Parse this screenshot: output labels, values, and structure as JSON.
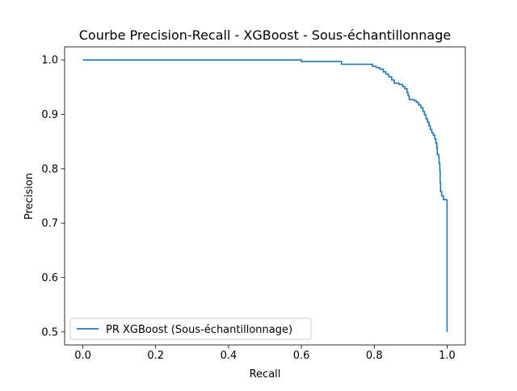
{
  "chart_data": {
    "type": "line",
    "title": "Courbe Precision-Recall - XGBoost - Sous-échantillonnage",
    "xlabel": "Recall",
    "ylabel": "Precision",
    "xlim": [
      -0.05,
      1.05
    ],
    "ylim": [
      0.476,
      1.024
    ],
    "x_ticks": [
      0.0,
      0.2,
      0.4,
      0.6,
      0.8,
      1.0
    ],
    "x_tick_labels": [
      "0.0",
      "0.2",
      "0.4",
      "0.6",
      "0.8",
      "1.0"
    ],
    "y_ticks": [
      0.5,
      0.6,
      0.7,
      0.8,
      0.9,
      1.0
    ],
    "y_tick_labels": [
      "0.5",
      "0.6",
      "0.7",
      "0.8",
      "0.9",
      "1.0"
    ],
    "grid": false,
    "legend": {
      "position": "lower-left",
      "entries": [
        "PR XGBoost (Sous-échantillonnage)"
      ]
    },
    "series": [
      {
        "name": "PR XGBoost (Sous-échantillonnage)",
        "color": "#1f77b4",
        "step": true,
        "points": [
          [
            0.0,
            1.0
          ],
          [
            0.6,
            1.0
          ],
          [
            0.6,
            0.997
          ],
          [
            0.71,
            0.997
          ],
          [
            0.71,
            0.992
          ],
          [
            0.795,
            0.992
          ],
          [
            0.795,
            0.988
          ],
          [
            0.805,
            0.988
          ],
          [
            0.805,
            0.986
          ],
          [
            0.815,
            0.986
          ],
          [
            0.815,
            0.983
          ],
          [
            0.825,
            0.983
          ],
          [
            0.825,
            0.978
          ],
          [
            0.832,
            0.978
          ],
          [
            0.832,
            0.974
          ],
          [
            0.84,
            0.974
          ],
          [
            0.84,
            0.969
          ],
          [
            0.848,
            0.969
          ],
          [
            0.848,
            0.963
          ],
          [
            0.855,
            0.963
          ],
          [
            0.855,
            0.957
          ],
          [
            0.868,
            0.957
          ],
          [
            0.868,
            0.955
          ],
          [
            0.878,
            0.955
          ],
          [
            0.878,
            0.951
          ],
          [
            0.884,
            0.951
          ],
          [
            0.884,
            0.947
          ],
          [
            0.89,
            0.947
          ],
          [
            0.89,
            0.94
          ],
          [
            0.893,
            0.94
          ],
          [
            0.893,
            0.934
          ],
          [
            0.896,
            0.934
          ],
          [
            0.896,
            0.927
          ],
          [
            0.91,
            0.927
          ],
          [
            0.91,
            0.925
          ],
          [
            0.916,
            0.925
          ],
          [
            0.916,
            0.922
          ],
          [
            0.922,
            0.922
          ],
          [
            0.922,
            0.917
          ],
          [
            0.928,
            0.917
          ],
          [
            0.928,
            0.912
          ],
          [
            0.934,
            0.912
          ],
          [
            0.934,
            0.905
          ],
          [
            0.938,
            0.905
          ],
          [
            0.938,
            0.899
          ],
          [
            0.942,
            0.899
          ],
          [
            0.942,
            0.892
          ],
          [
            0.946,
            0.892
          ],
          [
            0.946,
            0.886
          ],
          [
            0.95,
            0.886
          ],
          [
            0.95,
            0.879
          ],
          [
            0.954,
            0.879
          ],
          [
            0.954,
            0.872
          ],
          [
            0.958,
            0.872
          ],
          [
            0.958,
            0.866
          ],
          [
            0.962,
            0.866
          ],
          [
            0.962,
            0.862
          ],
          [
            0.966,
            0.862
          ],
          [
            0.966,
            0.855
          ],
          [
            0.969,
            0.855
          ],
          [
            0.969,
            0.847
          ],
          [
            0.972,
            0.847
          ],
          [
            0.972,
            0.838
          ],
          [
            0.973,
            0.838
          ],
          [
            0.973,
            0.826
          ],
          [
            0.977,
            0.826
          ],
          [
            0.977,
            0.822
          ],
          [
            0.978,
            0.822
          ],
          [
            0.978,
            0.81
          ],
          [
            0.98,
            0.81
          ],
          [
            0.98,
            0.797
          ],
          [
            0.981,
            0.797
          ],
          [
            0.981,
            0.775
          ],
          [
            0.982,
            0.775
          ],
          [
            0.982,
            0.758
          ],
          [
            0.985,
            0.758
          ],
          [
            0.985,
            0.75
          ],
          [
            0.99,
            0.75
          ],
          [
            0.99,
            0.743
          ],
          [
            1.0,
            0.743
          ],
          [
            1.0,
            0.5
          ]
        ]
      }
    ]
  }
}
